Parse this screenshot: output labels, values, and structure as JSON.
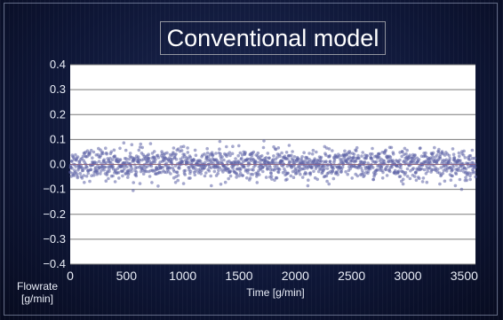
{
  "chart_data": {
    "type": "scatter",
    "title": "Conventional model",
    "xlabel": "Time [g/min]",
    "ylabel": "Flowrate\n[g/min]",
    "ylabel_lines": [
      "Flowrate",
      "[g/min]"
    ],
    "xlim": [
      0,
      3600
    ],
    "ylim": [
      -0.4,
      0.4
    ],
    "xticks": [
      "0",
      "500",
      "1000",
      "1500",
      "2000",
      "2500",
      "3000",
      "3500"
    ],
    "xtick_values": [
      0,
      500,
      1000,
      1500,
      2000,
      2500,
      3000,
      3500
    ],
    "yticks": [
      "0.4",
      "0.3",
      "0.2",
      "0.1",
      "0.0",
      "−0.1",
      "−0.2",
      "−0.3",
      "−0.4"
    ],
    "ytick_values": [
      0.4,
      0.3,
      0.2,
      0.1,
      0.0,
      -0.1,
      -0.2,
      -0.3,
      -0.4
    ],
    "grid": true,
    "series": [
      {
        "color": "#5c62a6",
        "points": 1500,
        "x_range": [
          0,
          3600
        ],
        "y_center": 0.0,
        "y_std": 0.03,
        "y_band": [
          -0.12,
          0.12
        ]
      }
    ],
    "reference_line": {
      "y": 0.0,
      "color": "#c06070"
    }
  },
  "colors": {
    "background": "#0d1533",
    "plot_bg": "#ffffff",
    "grid": "#7a7a7a",
    "tick_text": "#e8ecf6",
    "title_text": "#ffffff",
    "marker": "#5c62a6"
  }
}
